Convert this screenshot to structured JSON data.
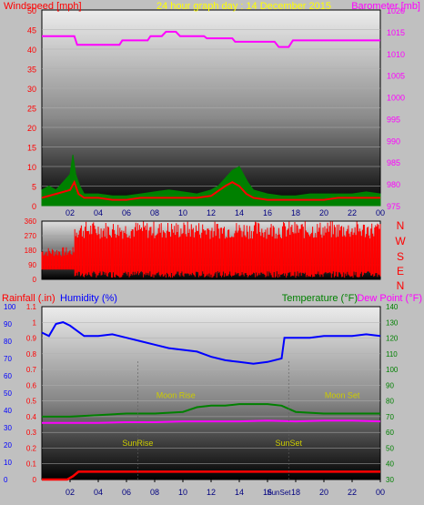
{
  "header": {
    "windspeed_label": "Windspeed [mph]",
    "graph_title": "24 hour graph day : 14 December 2015",
    "barometer_label": "Barometer [mb]"
  },
  "lower_header": {
    "rainfall_label": "Rainfall (.in)",
    "humidity_label": "Humidity (%)",
    "temperature_label": "Temperature (°F)",
    "dewpoint_label": "Dew Point (°F)"
  },
  "direction_letters": [
    "N",
    "W",
    "S",
    "E",
    "N"
  ],
  "colors": {
    "windspeed": "#ff0000",
    "gust": "#008000",
    "barometer": "#ff00ff",
    "wind_direction": "#ff0000",
    "rainfall": "#ff0000",
    "humidity": "#0000ff",
    "temperature": "#008000",
    "dewpoint": "#ff00ff",
    "sun_moon_text": "#cccc00",
    "title_text": "#ffff00"
  },
  "chart_data": [
    {
      "type": "area",
      "name": "wind-barometer",
      "x_ticks": [
        "02",
        "04",
        "06",
        "08",
        "10",
        "12",
        "14",
        "16",
        "18",
        "20",
        "22",
        "00"
      ],
      "y_left_ticks": [
        "0",
        "5",
        "10",
        "15",
        "20",
        "25",
        "30",
        "35",
        "40",
        "45",
        "50"
      ],
      "y_left_range": [
        0,
        50
      ],
      "y_right_ticks": [
        "975",
        "980",
        "985",
        "990",
        "995",
        "1000",
        "1005",
        "1010",
        "1015",
        "1020"
      ],
      "y_right_range": [
        975,
        1020
      ],
      "barometer": {
        "x": [
          0,
          2.3,
          2.5,
          5.5,
          5.7,
          7.5,
          7.7,
          8.5,
          8.8,
          9.5,
          9.8,
          11.5,
          11.7,
          13.5,
          13.7,
          16.5,
          16.8,
          17.5,
          17.8,
          24
        ],
        "y": [
          1014,
          1014,
          1012,
          1012,
          1013,
          1013,
          1014,
          1014,
          1015,
          1015,
          1014,
          1014,
          1013.5,
          1013.5,
          1012.7,
          1012.7,
          1011.5,
          1011.5,
          1013,
          1013
        ]
      },
      "windspeed": {
        "x": [
          0,
          1,
          2,
          2.3,
          2.6,
          3,
          4,
          5,
          6,
          7,
          8,
          9,
          10,
          11,
          12,
          13,
          13.5,
          14,
          14.5,
          15,
          16,
          17,
          18,
          19,
          20,
          21,
          22,
          23,
          24
        ],
        "y": [
          2,
          3,
          4,
          6,
          3,
          2,
          2,
          1.5,
          1.5,
          2,
          2,
          2,
          2,
          2,
          2.5,
          5,
          6,
          5,
          3,
          2,
          1.5,
          1.5,
          1.5,
          1.5,
          1.5,
          2,
          2,
          2,
          2
        ]
      },
      "gust": {
        "x": [
          0,
          0.5,
          1,
          1.5,
          2,
          2.2,
          2.4,
          2.7,
          3,
          4,
          5,
          6,
          7,
          8,
          9,
          10,
          11,
          12,
          12.5,
          13,
          13.5,
          14,
          14.3,
          14.6,
          15,
          16,
          17,
          18,
          19,
          20,
          21,
          22,
          23,
          24
        ],
        "y": [
          4,
          5,
          4,
          6,
          8,
          13,
          8,
          5,
          3,
          3,
          2.5,
          2.5,
          3,
          3.5,
          4,
          3.5,
          3,
          4,
          5,
          7,
          9,
          10,
          8,
          6,
          4,
          3,
          2.5,
          2.5,
          3,
          3,
          3,
          3,
          3.5,
          3
        ]
      }
    },
    {
      "type": "scatter",
      "name": "wind-direction",
      "y_ticks": [
        "0",
        "90",
        "180",
        "270",
        "360"
      ],
      "y_range": [
        0,
        360
      ]
    },
    {
      "type": "line",
      "name": "rain-humidity-temperature",
      "x_ticks": [
        "02",
        "04",
        "06",
        "08",
        "10",
        "12",
        "14",
        "16",
        "18",
        "20",
        "22",
        "00"
      ],
      "y_humidity_ticks": [
        "0",
        "10",
        "20",
        "30",
        "40",
        "50",
        "60",
        "70",
        "80",
        "90",
        "100"
      ],
      "y_humidity_range": [
        0,
        100
      ],
      "y_rainfall_ticks": [
        "0",
        "0.1",
        "0.2",
        "0.3",
        "0.4",
        "0.5",
        "0.6",
        "0.7",
        "0.8",
        "0.9",
        "1",
        "1.1"
      ],
      "y_rainfall_range": [
        0,
        1.1
      ],
      "y_temperature_ticks": [
        "30",
        "40",
        "50",
        "60",
        "70",
        "80",
        "90",
        "100",
        "110",
        "120",
        "130",
        "140"
      ],
      "y_temperature_range": [
        30,
        140
      ],
      "humidity": {
        "x": [
          0,
          0.5,
          1,
          1.5,
          2,
          3,
          4,
          5,
          6,
          7,
          8,
          9,
          10,
          11,
          12,
          13,
          14,
          15,
          16,
          17,
          17.2,
          18,
          19,
          20,
          21,
          22,
          23,
          24
        ],
        "y": [
          85,
          83,
          90,
          91,
          89,
          83,
          83,
          84,
          82,
          80,
          78,
          76,
          75,
          74,
          71,
          69,
          68,
          67,
          68,
          70,
          82,
          82,
          82,
          83,
          83,
          83,
          84,
          83
        ]
      },
      "temperature": {
        "x": [
          0,
          2,
          4,
          6,
          8,
          10,
          11,
          12,
          13,
          14,
          15,
          16,
          17,
          18,
          20,
          22,
          24
        ],
        "y": [
          70,
          70,
          71,
          72,
          72,
          73,
          76,
          77,
          77,
          78,
          78,
          78,
          77,
          73,
          72,
          72,
          72
        ]
      },
      "dewpoint": {
        "x": [
          0,
          2,
          4,
          6,
          8,
          10,
          12,
          14,
          16,
          18,
          20,
          22,
          24
        ],
        "y": [
          66,
          66,
          66,
          66.5,
          66.5,
          67,
          67,
          67,
          67.5,
          67,
          67.5,
          67.5,
          67
        ]
      },
      "rainfall": {
        "x": [
          0,
          1.8,
          2.2,
          2.6,
          24
        ],
        "y": [
          0,
          0,
          0.02,
          0.05,
          0.05
        ]
      },
      "annotations": [
        {
          "text": "SunRise",
          "x": 6.8,
          "y": 18,
          "color": "#cccc00"
        },
        {
          "text": "SunSet",
          "x": 17.5,
          "y": 18,
          "color": "#cccc00"
        },
        {
          "text": "Moon Rise",
          "x": 9.5,
          "y": 0.5,
          "color": "#cccc00"
        },
        {
          "text": "Moon Set",
          "x": 21.3,
          "y": 0.5,
          "color": "#cccc00"
        }
      ],
      "extra_labels": [
        {
          "text": "SunSet",
          "x": 16.8,
          "y": -6,
          "color": "#000080"
        }
      ]
    }
  ]
}
